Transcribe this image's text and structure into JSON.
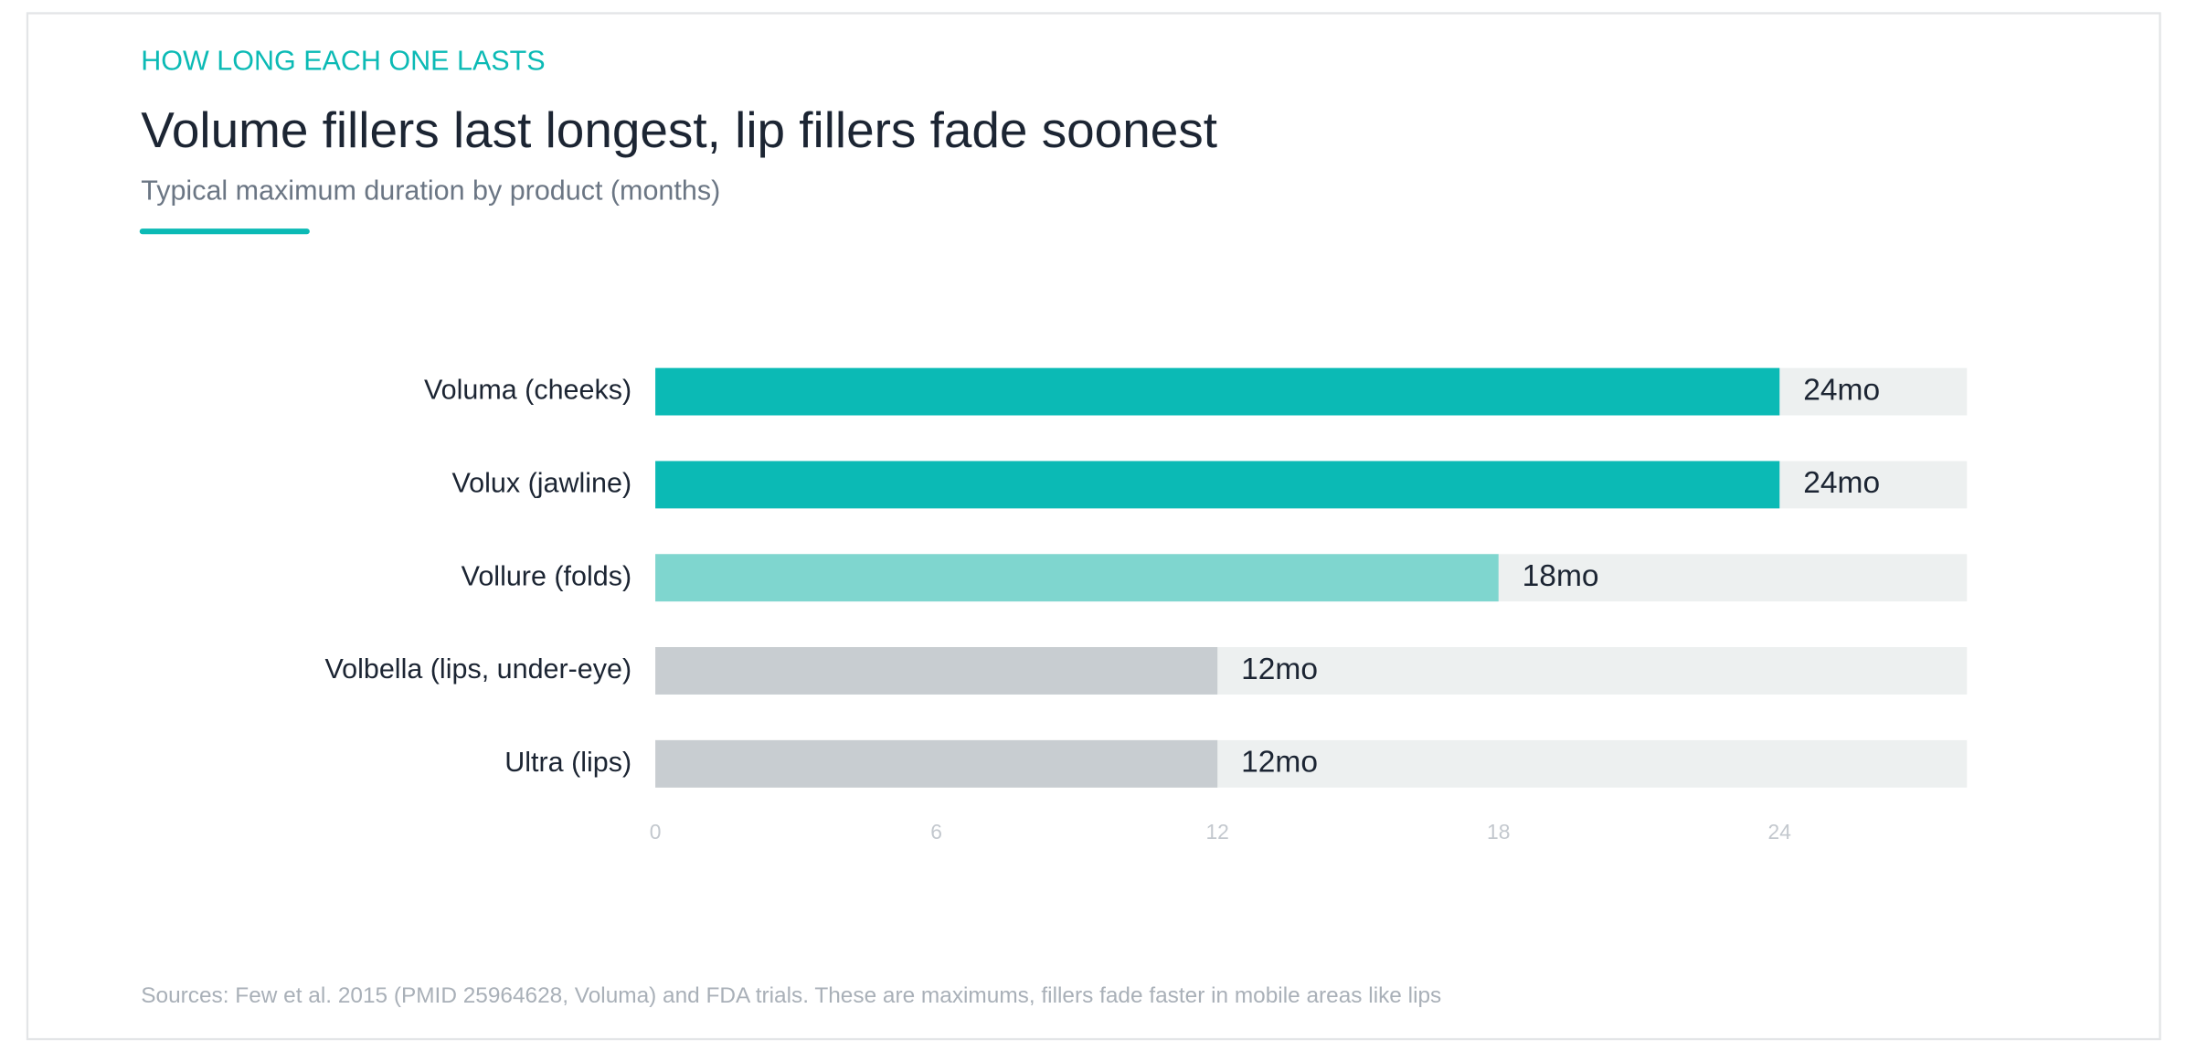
{
  "chart_data": {
    "type": "bar",
    "orientation": "horizontal",
    "eyebrow": "HOW LONG EACH ONE LASTS",
    "title": "Volume fillers last longest, lip fillers fade soonest",
    "subtitle": "Typical maximum duration by product (months)",
    "categories": [
      "Voluma (cheeks)",
      "Volux (jawline)",
      "Vollure (folds)",
      "Volbella (lips, under-eye)",
      "Ultra (lips)"
    ],
    "values": [
      24,
      24,
      18,
      12,
      12
    ],
    "value_labels": [
      "24mo",
      "24mo",
      "18mo",
      "12mo",
      "12mo"
    ],
    "colors": [
      "#0bbab5",
      "#0bbab5",
      "#7fd6cf",
      "#c8cdd1",
      "#c8cdd1"
    ],
    "track_color": "#edf0f0",
    "xlim": [
      0,
      28
    ],
    "xticks": [
      0,
      6,
      12,
      18,
      24
    ],
    "source": "Sources: Few et al. 2015 (PMID 25964628, Voluma) and FDA trials. These are maximums, fillers fade faster in mobile areas like lips"
  }
}
